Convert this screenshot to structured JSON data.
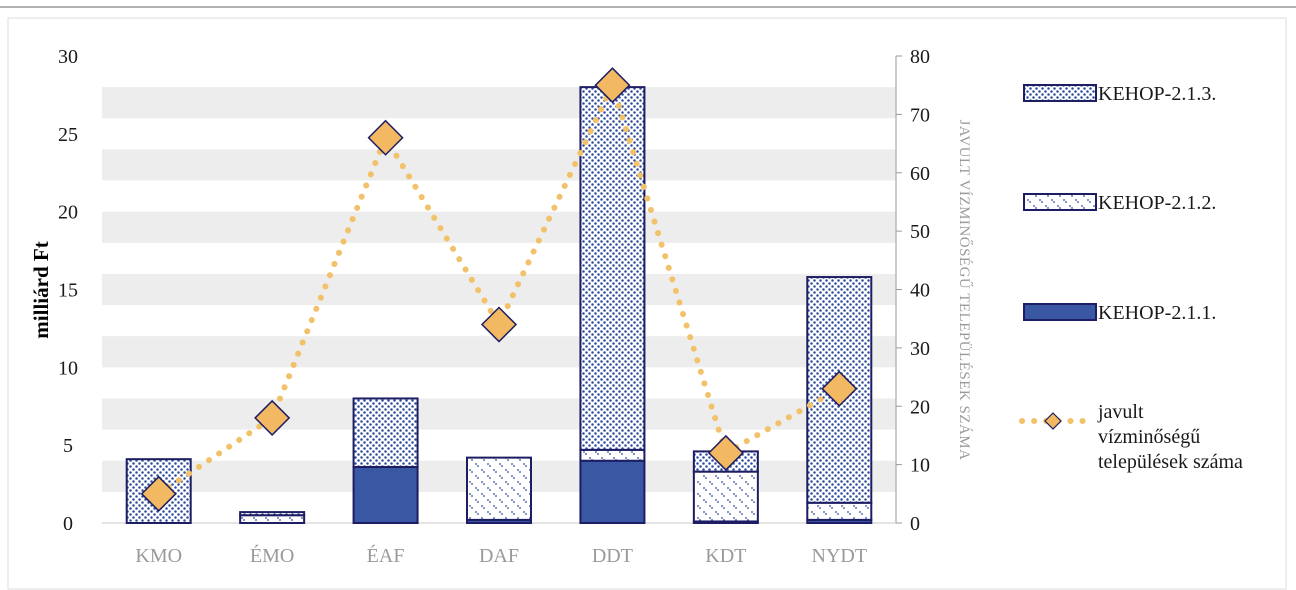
{
  "chart_data": {
    "type": "bar",
    "stacked": true,
    "categories": [
      "KMO",
      "ÉMO",
      "ÉAF",
      "DAF",
      "DDT",
      "KDT",
      "NYDT"
    ],
    "ylabel": "milliárd Ft",
    "y2label": "JAVULT VÍZMINŐSÉGŰ TELEPÜLÉSEK SZÁMA",
    "ylim": [
      0,
      30
    ],
    "y2lim": [
      0,
      80
    ],
    "yticks": [
      "0",
      "5",
      "10",
      "15",
      "20",
      "25",
      "30"
    ],
    "y2ticks": [
      "0",
      "10",
      "20",
      "30",
      "40",
      "50",
      "60",
      "70",
      "80"
    ],
    "grid": true,
    "legend_position": "right",
    "series": [
      {
        "name": "KEHOP-2.1.1.",
        "axis": "left",
        "pattern": "solid",
        "values": [
          0,
          0,
          3.6,
          0.2,
          4.0,
          0.1,
          0.2
        ]
      },
      {
        "name": "KEHOP-2.1.2.",
        "axis": "left",
        "pattern": "sparse-dots",
        "values": [
          0,
          0.5,
          0,
          4.0,
          0.7,
          3.2,
          1.1
        ]
      },
      {
        "name": "KEHOP-2.1.3.",
        "axis": "left",
        "pattern": "dense-dots",
        "values": [
          4.1,
          0.2,
          4.4,
          0,
          23.3,
          1.3,
          14.5
        ]
      },
      {
        "name": "javult vízminőségű települések száma",
        "legend_lines": [
          "javult",
          "vízminőségű",
          "települések száma"
        ],
        "axis": "right",
        "type": "line",
        "values": [
          5,
          18,
          66,
          34,
          75,
          12,
          23
        ]
      }
    ],
    "colors": {
      "bar_fill": "#3a57a3",
      "bar_outline": "#1d1d63",
      "pattern_dot": "#2e4c9c",
      "line": "#f2c26b",
      "marker_fill": "#f3b862",
      "marker_outline": "#1d1d63",
      "grid_band": "#ededed"
    }
  }
}
